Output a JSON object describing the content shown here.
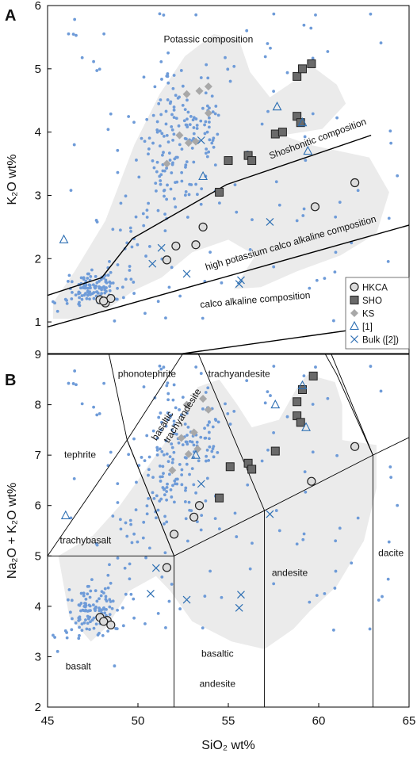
{
  "chart_data": [
    {
      "panel_label": "A",
      "type": "scatter",
      "xlim": [
        45,
        65
      ],
      "ylim": [
        0.5,
        6
      ],
      "ylabel": "K₂O wt%",
      "yticks": [
        1,
        2,
        3,
        4,
        5,
        6
      ],
      "field_labels": [
        {
          "text": "Potassic composition",
          "x": 53.9,
          "y": 5.42,
          "rotation": 0
        },
        {
          "text": "Shoshonitic composition",
          "x": 60.0,
          "y": 3.85,
          "rotation": -20
        },
        {
          "text": "high potassium calco alkaline composition",
          "x": 58.5,
          "y": 2.2,
          "rotation": -16
        },
        {
          "text": "calco alkaline composition",
          "x": 56.5,
          "y": 1.3,
          "rotation": -5
        }
      ],
      "boundary_lines": [
        [
          [
            45,
            1.42
          ],
          [
            48,
            1.7
          ],
          [
            49.7,
            2.32
          ],
          [
            54.9,
            3.17
          ],
          [
            62.9,
            3.95
          ]
        ],
        [
          [
            45,
            0.92
          ],
          [
            65,
            2.53
          ]
        ],
        [
          [
            45,
            0.2
          ],
          [
            65,
            1.0
          ]
        ]
      ],
      "grey_field": [
        [
          45.3,
          1.3
        ],
        [
          46.5,
          1.8
        ],
        [
          48.2,
          2.6
        ],
        [
          49.8,
          3.8
        ],
        [
          51.2,
          4.6
        ],
        [
          52.6,
          5.2
        ],
        [
          54.2,
          5.55
        ],
        [
          55.6,
          5.45
        ],
        [
          56.2,
          4.95
        ],
        [
          57.3,
          4.55
        ],
        [
          58.6,
          4.8
        ],
        [
          59.6,
          5.05
        ],
        [
          61,
          4.75
        ],
        [
          61.5,
          4.45
        ],
        [
          60.2,
          4.05
        ],
        [
          58,
          3.95
        ],
        [
          59.5,
          3.8
        ],
        [
          62.8,
          3.6
        ],
        [
          63.9,
          3.05
        ],
        [
          63.2,
          2.4
        ],
        [
          61.2,
          2.05
        ],
        [
          58.8,
          1.8
        ],
        [
          56.8,
          1.55
        ],
        [
          55.3,
          1.52
        ],
        [
          56.5,
          2.05
        ],
        [
          55,
          2.3
        ],
        [
          53,
          2.1
        ],
        [
          51.3,
          1.7
        ],
        [
          49.8,
          1.5
        ],
        [
          48.3,
          1.2
        ],
        [
          46.5,
          1.05
        ],
        [
          45.3,
          1.05
        ]
      ],
      "series": [
        {
          "name": "HKCA",
          "marker": "circle",
          "points": [
            [
              47.9,
              1.35
            ],
            [
              48.2,
              1.3
            ],
            [
              48.5,
              1.37
            ],
            [
              48.1,
              1.33
            ],
            [
              51.6,
              1.98
            ],
            [
              52.1,
              2.2
            ],
            [
              53.2,
              2.22
            ],
            [
              53.6,
              2.5
            ],
            [
              59.8,
              2.82
            ],
            [
              62.0,
              3.2
            ]
          ]
        },
        {
          "name": "SHO",
          "marker": "square",
          "points": [
            [
              57.6,
              3.97
            ],
            [
              58,
              4.0
            ],
            [
              58.8,
              4.25
            ],
            [
              59,
              4.15
            ],
            [
              58.8,
              4.88
            ],
            [
              59.1,
              5.0
            ],
            [
              59.6,
              5.08
            ],
            [
              55,
              3.55
            ],
            [
              56.1,
              3.63
            ],
            [
              56.3,
              3.55
            ],
            [
              54.5,
              3.05
            ]
          ]
        },
        {
          "name": "KS",
          "marker": "diamond",
          "points": [
            [
              52.7,
              4.6
            ],
            [
              53.4,
              4.65
            ],
            [
              53.9,
              4.72
            ],
            [
              53.9,
              4.3
            ],
            [
              52.8,
              3.83
            ],
            [
              53.2,
              3.85
            ],
            [
              51.6,
              3.5
            ],
            [
              52.3,
              3.95
            ]
          ]
        },
        {
          "name": "[1]",
          "marker": "triangle",
          "points": [
            [
              45.9,
              2.3
            ],
            [
              53.6,
              3.3
            ],
            [
              57.7,
              4.4
            ],
            [
              59.1,
              4.15
            ],
            [
              59.4,
              3.7
            ]
          ]
        },
        {
          "name": "Bulk ([2])",
          "marker": "x",
          "points": [
            [
              50.8,
              1.92
            ],
            [
              52.7,
              1.76
            ],
            [
              51.3,
              2.17
            ],
            [
              55.6,
              1.6
            ],
            [
              55.7,
              1.66
            ],
            [
              57.3,
              2.58
            ],
            [
              53.5,
              3.87
            ]
          ]
        }
      ],
      "background_points": {
        "color": "#6e9bd8"
      },
      "legend": {
        "location": "lower-right",
        "entries": [
          "HKCA",
          "SHO",
          "KS",
          "[1]",
          "Bulk ([2])"
        ]
      }
    },
    {
      "panel_label": "B",
      "type": "scatter",
      "xlim": [
        45,
        65
      ],
      "ylim": [
        2,
        9
      ],
      "xlabel": "SiO₂ wt%",
      "ylabel": "Na₂O + K₂O wt%",
      "xticks": [
        45,
        50,
        55,
        60,
        65
      ],
      "yticks": [
        2,
        3,
        4,
        5,
        6,
        7,
        8,
        9
      ],
      "field_labels": [
        {
          "text": "phonotephrite",
          "x": 50.5,
          "y": 8.55,
          "rotation": 0
        },
        {
          "text": "trachyandesite",
          "x": 55.6,
          "y": 8.55,
          "rotation": 0
        },
        {
          "text": "basaltic",
          "x": 51.5,
          "y": 7.55,
          "rotation": -58
        },
        {
          "text": "trachyandesite",
          "x": 52.6,
          "y": 7.75,
          "rotation": -58
        },
        {
          "text": "tephrite",
          "x": 46.8,
          "y": 6.95,
          "rotation": 0
        },
        {
          "text": "trachybasalt",
          "x": 47.1,
          "y": 5.25,
          "rotation": 0
        },
        {
          "text": "dacite",
          "x": 64.0,
          "y": 5.0,
          "rotation": 0
        },
        {
          "text": "andesite",
          "x": 58.4,
          "y": 4.6,
          "rotation": 0
        },
        {
          "text": "basaltic",
          "x": 54.4,
          "y": 3.0,
          "rotation": 0
        },
        {
          "text": "andesite",
          "x": 54.4,
          "y": 2.4,
          "rotation": 0
        },
        {
          "text": "basalt",
          "x": 46.7,
          "y": 2.75,
          "rotation": 0
        }
      ],
      "tas_lines": [
        [
          [
            45,
            5
          ],
          [
            49.4,
            7.3
          ],
          [
            53,
            9.3
          ]
        ],
        [
          [
            45,
            5
          ],
          [
            52,
            5
          ],
          [
            57,
            5.9
          ],
          [
            63,
            7
          ],
          [
            65,
            7.35
          ]
        ],
        [
          [
            52,
            2
          ],
          [
            52,
            5
          ],
          [
            49.4,
            7.3
          ],
          [
            48.4,
            9.0
          ],
          [
            48.4,
            9.3
          ]
        ],
        [
          [
            57,
            2
          ],
          [
            57,
            5.9
          ],
          [
            53,
            9.3
          ]
        ],
        [
          [
            63,
            2
          ],
          [
            63,
            7
          ],
          [
            57.6,
            11.7
          ]
        ],
        [
          [
            49.4,
            7.3
          ],
          [
            52,
            5
          ]
        ],
        [
          [
            53,
            9.3
          ],
          [
            57.6,
            11.7
          ]
        ],
        [
          [
            52.5,
            14
          ],
          [
            61,
            8.6
          ],
          [
            63,
            7
          ]
        ]
      ],
      "grey_field": [
        [
          45.6,
          5.0
        ],
        [
          47.5,
          5.4
        ],
        [
          49.0,
          6.0
        ],
        [
          50.8,
          6.9
        ],
        [
          52.2,
          7.6
        ],
        [
          53.3,
          8.35
        ],
        [
          54.5,
          8.5
        ],
        [
          55.5,
          8.0
        ],
        [
          56.3,
          7.55
        ],
        [
          57.8,
          7.7
        ],
        [
          58.9,
          8.4
        ],
        [
          59.4,
          8.6
        ],
        [
          60.9,
          8.45
        ],
        [
          61.3,
          8.0
        ],
        [
          61.3,
          7.3
        ],
        [
          63.2,
          7.2
        ],
        [
          63.2,
          6.35
        ],
        [
          62.5,
          5.3
        ],
        [
          61.0,
          4.4
        ],
        [
          59.5,
          3.9
        ],
        [
          58.6,
          3.55
        ],
        [
          57.0,
          3.15
        ],
        [
          55.2,
          3.3
        ],
        [
          53.0,
          3.7
        ],
        [
          51.8,
          4.3
        ],
        [
          51.0,
          4.6
        ],
        [
          49.5,
          4.3
        ],
        [
          48.3,
          3.6
        ],
        [
          47.4,
          3.3
        ],
        [
          46.2,
          3.8
        ]
      ],
      "series": [
        {
          "name": "HKCA",
          "marker": "circle",
          "points": [
            [
              47.9,
              3.78
            ],
            [
              48.3,
              3.72
            ],
            [
              48.5,
              3.63
            ],
            [
              48.1,
              3.7
            ],
            [
              51.6,
              4.77
            ],
            [
              52.0,
              5.43
            ],
            [
              53.1,
              5.77
            ],
            [
              53.4,
              6.0
            ],
            [
              59.6,
              6.48
            ],
            [
              62.0,
              7.17
            ]
          ]
        },
        {
          "name": "SHO",
          "marker": "square",
          "points": [
            [
              57.6,
              7.08
            ],
            [
              58.8,
              7.78
            ],
            [
              59.0,
              7.65
            ],
            [
              58.8,
              8.06
            ],
            [
              59.1,
              8.3
            ],
            [
              59.7,
              8.57
            ],
            [
              55.1,
              6.77
            ],
            [
              56.1,
              6.84
            ],
            [
              56.3,
              6.72
            ],
            [
              54.5,
              6.15
            ]
          ]
        },
        {
          "name": "KS",
          "marker": "diamond",
          "points": [
            [
              52.7,
              8.0
            ],
            [
              53.6,
              8.12
            ],
            [
              53.9,
              7.9
            ],
            [
              53.1,
              7.45
            ],
            [
              52.8,
              7.02
            ],
            [
              53.3,
              7.12
            ],
            [
              51.9,
              6.7
            ],
            [
              52.4,
              7.34
            ]
          ]
        },
        {
          "name": "[1]",
          "marker": "triangle",
          "points": [
            [
              46.0,
              5.8
            ],
            [
              53.2,
              7.0
            ],
            [
              57.6,
              8.0
            ],
            [
              59.1,
              8.38
            ],
            [
              59.3,
              7.55
            ]
          ]
        },
        {
          "name": "Bulk ([2])",
          "marker": "x",
          "points": [
            [
              51.0,
              4.76
            ],
            [
              52.7,
              4.13
            ],
            [
              50.7,
              4.25
            ],
            [
              55.6,
              3.97
            ],
            [
              55.7,
              4.23
            ],
            [
              57.3,
              5.83
            ],
            [
              53.5,
              6.43
            ]
          ]
        }
      ],
      "background_points": {
        "color": "#6e9bd8"
      }
    }
  ]
}
